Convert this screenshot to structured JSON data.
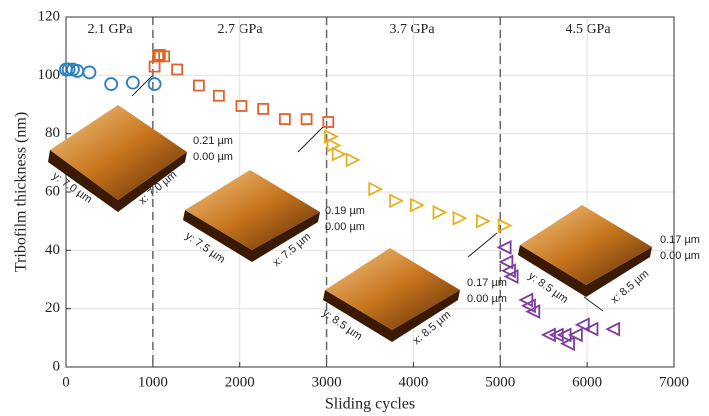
{
  "chart_data": {
    "type": "scatter",
    "x_label": "Sliding cycles",
    "y_label": "Tribofilm thickness (nm)",
    "xlim": [
      0,
      7000
    ],
    "xticks": [
      0,
      1000,
      2000,
      3000,
      4000,
      5000,
      6000,
      7000
    ],
    "ylim": [
      0,
      120
    ],
    "yticks": [
      0,
      20,
      40,
      60,
      80,
      100,
      120
    ],
    "grid": true,
    "dividers": [
      1000,
      3000,
      5000
    ],
    "annotations": [
      "2.1 GPa",
      "2.7 GPa",
      "3.7 GPa",
      "4.5 GPa"
    ],
    "insets": [
      {
        "z_max": "0.21 µm",
        "z_min": "0.00 µm",
        "y_label": "y: 7.0 µm",
        "x_label": "x: 7.0 µm"
      },
      {
        "z_max": "0.19 µm",
        "z_min": "0.00 µm",
        "y_label": "y: 7.5 µm",
        "x_label": "x: 7.5 µm"
      },
      {
        "z_max": "0.17 µm",
        "z_min": "0.00 µm",
        "y_label": "y: 8.5 µm",
        "x_label": "x: 8.5 µm"
      },
      {
        "z_max": "0.17 µm",
        "z_min": "0.00 µm",
        "y_label": "y: 8.5 µm",
        "x_label": "x: 8.5 µm"
      }
    ],
    "series": [
      {
        "color": "#2a7fbf",
        "marker": "circle",
        "x": [
          0,
          30,
          80,
          130,
          270,
          520,
          770,
          1020
        ],
        "values": [
          102,
          102,
          102,
          101.5,
          101,
          97,
          97.5,
          97
        ]
      },
      {
        "color": "#e0622a",
        "marker": "square",
        "x": [
          1020,
          1060,
          1080,
          1130,
          1280,
          1530,
          1760,
          2020,
          2270,
          2520,
          2770,
          3020
        ],
        "values": [
          103,
          106.5,
          107,
          106.5,
          102,
          96.5,
          93,
          89.5,
          88.5,
          85,
          85,
          84
        ]
      },
      {
        "color": "#e8b021",
        "marker": "triangle-right",
        "x": [
          3050,
          3080,
          3140,
          3300,
          3560,
          3800,
          4040,
          4300,
          4530,
          4800,
          5050
        ],
        "values": [
          79,
          76,
          73,
          71,
          61,
          57,
          55.5,
          53,
          51,
          50,
          48.5
        ]
      },
      {
        "color": "#7e3a9e",
        "marker": "triangle-left",
        "x": [
          5050,
          5070,
          5100,
          5130,
          5300,
          5330,
          5380,
          5560,
          5650,
          5740,
          5780,
          5870,
          5950,
          6050,
          6300
        ],
        "values": [
          41,
          36,
          33,
          31,
          23,
          21,
          19,
          11,
          11,
          11,
          8,
          11,
          14.5,
          13,
          13
        ]
      }
    ]
  }
}
